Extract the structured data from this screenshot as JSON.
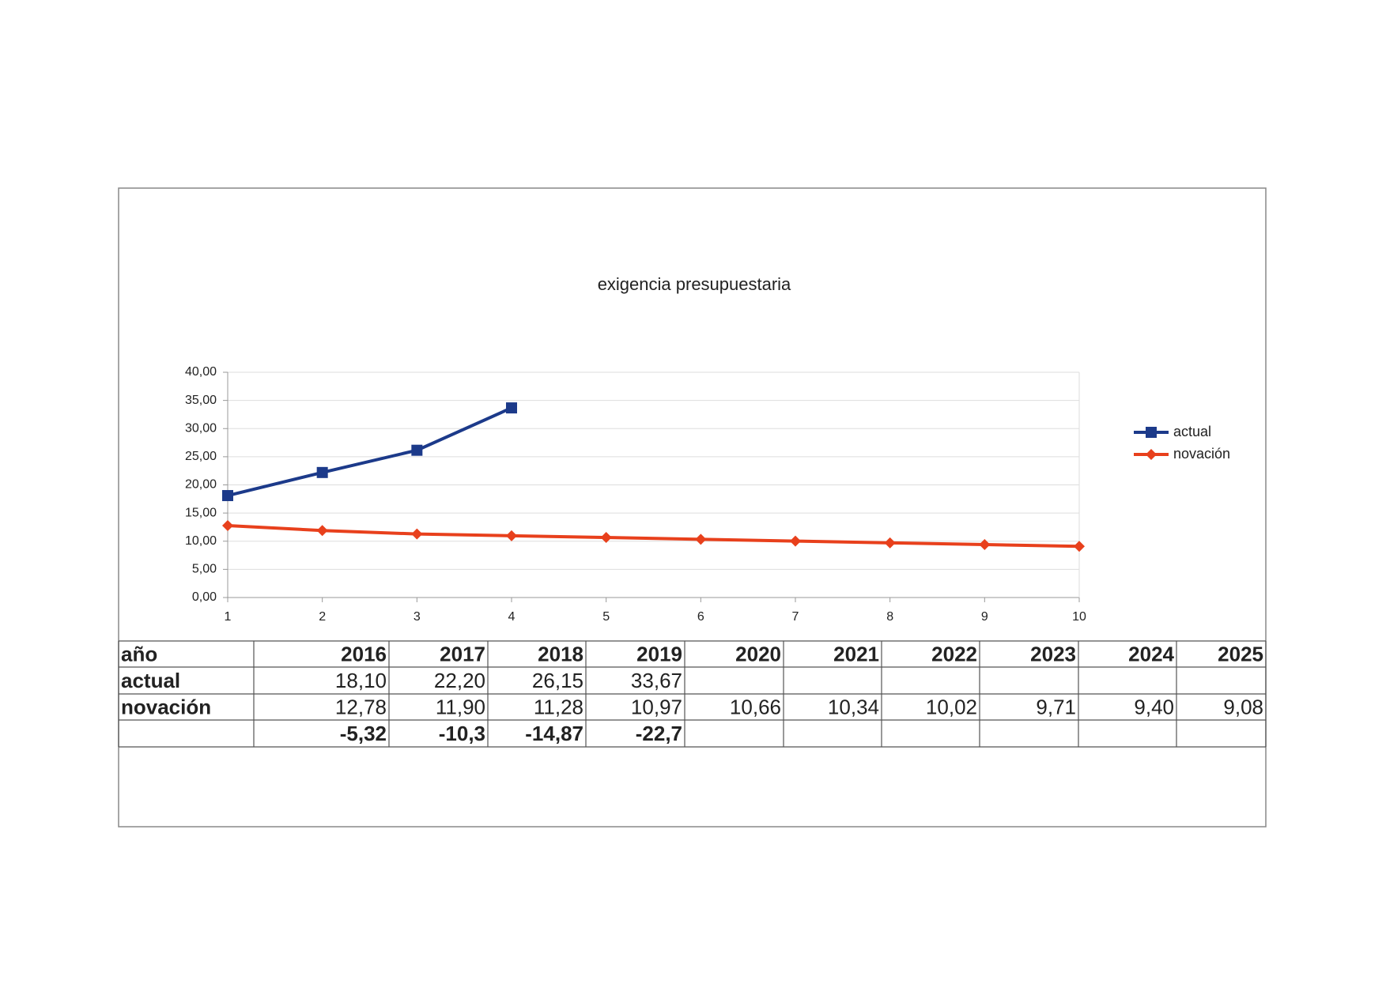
{
  "chart_data": {
    "type": "line",
    "title": "exigencia presupuestaria",
    "x": [
      1,
      2,
      3,
      4,
      5,
      6,
      7,
      8,
      9,
      10
    ],
    "xlim": [
      1,
      10
    ],
    "xticks": [
      1,
      2,
      3,
      4,
      5,
      6,
      7,
      8,
      9,
      10
    ],
    "ylim": [
      0,
      40
    ],
    "yticks": [
      {
        "value": 0,
        "label": "0,00"
      },
      {
        "value": 5,
        "label": "5,00"
      },
      {
        "value": 10,
        "label": "10,00"
      },
      {
        "value": 15,
        "label": "15,00"
      },
      {
        "value": 20,
        "label": "20,00"
      },
      {
        "value": 25,
        "label": "25,00"
      },
      {
        "value": 30,
        "label": "30,00"
      },
      {
        "value": 35,
        "label": "35,00"
      },
      {
        "value": 40,
        "label": "40,00"
      }
    ],
    "grid": true,
    "legend": "right",
    "series": [
      {
        "name": "actual",
        "color": "#1c3a8a",
        "marker": "square",
        "values": [
          18.1,
          22.2,
          26.15,
          33.67,
          null,
          null,
          null,
          null,
          null,
          null
        ]
      },
      {
        "name": "novación",
        "color": "#e8401c",
        "marker": "diamond",
        "values": [
          12.78,
          11.9,
          11.28,
          10.97,
          10.66,
          10.34,
          10.02,
          9.71,
          9.4,
          9.08
        ]
      }
    ]
  },
  "table": {
    "rows": [
      [
        "año",
        "2016",
        "2017",
        "2018",
        "2019",
        "2020",
        "2021",
        "2022",
        "2023",
        "2024",
        "2025"
      ],
      [
        "actual",
        "18,10",
        "22,20",
        "26,15",
        "33,67",
        null,
        null,
        null,
        null,
        null,
        null
      ],
      [
        "novación",
        "12,78",
        "11,90",
        "11,28",
        "10,97",
        "10,66",
        "10,34",
        "10,02",
        "9,71",
        "9,40",
        "9,08"
      ],
      [
        null,
        "-5,32",
        "-10,3",
        "-14,87",
        "-22,7",
        null,
        null,
        null,
        null,
        null,
        null
      ]
    ]
  }
}
